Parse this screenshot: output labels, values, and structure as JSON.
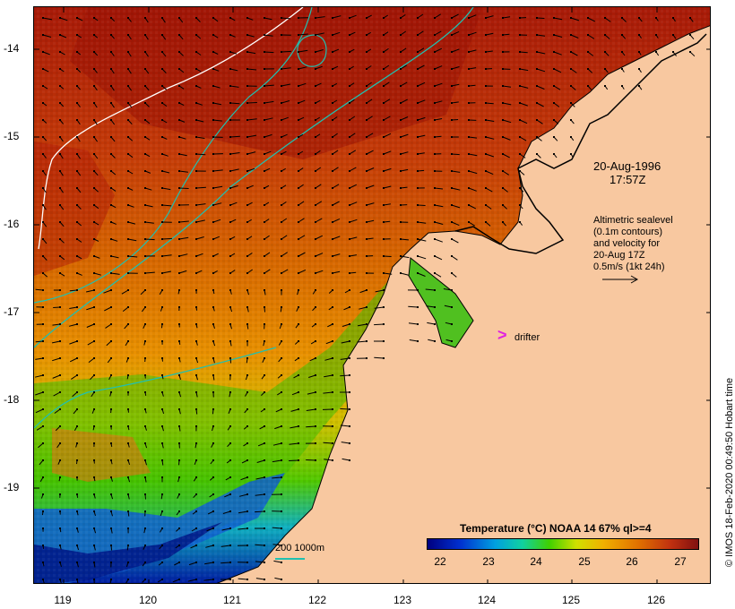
{
  "axes": {
    "lon_ticks": [
      "119",
      "120",
      "121",
      "122",
      "123",
      "124",
      "125",
      "126"
    ],
    "lat_ticks": [
      "-14",
      "-15",
      "-16",
      "-17",
      "-18",
      "-19"
    ]
  },
  "timestamp": {
    "date": "20-Aug-1996",
    "time": "17:57Z"
  },
  "altimetry_note": [
    "Altimetric sealevel",
    "(0.1m contours)",
    "and velocity for",
    "20-Aug 17Z",
    "0.5m/s (1kt 24h)"
  ],
  "drifter": {
    "label": "drifter",
    "color": "#e020e0"
  },
  "colorbar": {
    "title": "Temperature  (°C) NOAA 14 67% ql>=4",
    "ticks": [
      "22",
      "23",
      "24",
      "25",
      "26",
      "27"
    ]
  },
  "depth_legend": {
    "text": "200  1000m",
    "color": "#20c0b0"
  },
  "credit": "© IMOS 18-Feb-2020 00:49:50 Hobart time",
  "colors": {
    "land": "#f8c8a0",
    "sst_warm": "#b02008",
    "sst_mid": "#e07800",
    "sst_cool": "#40c000",
    "sst_cold": "#0020a0",
    "contour_200m": "#ffffff",
    "contour_1000m": "#20c0b0"
  }
}
